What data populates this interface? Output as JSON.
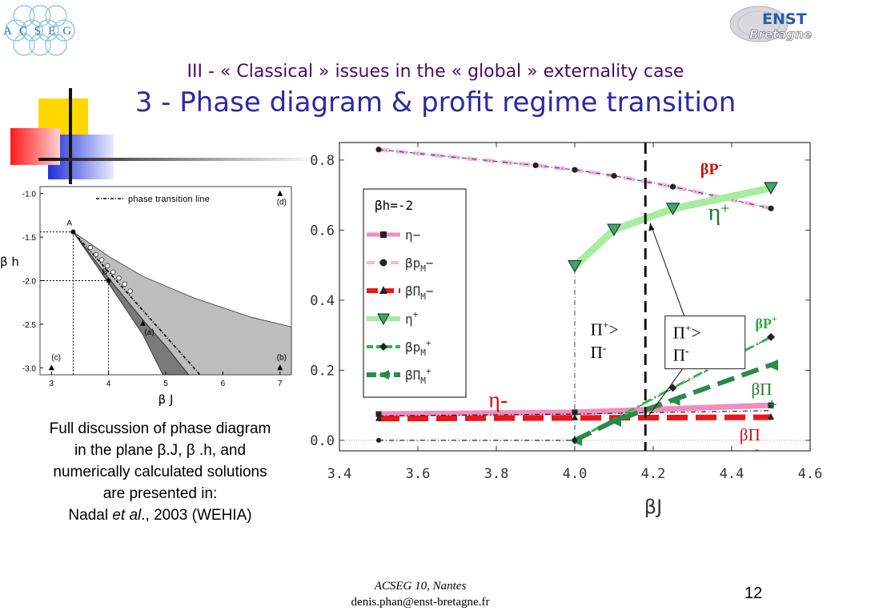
{
  "header": {
    "subtitle": "III - « Classical » issues in the « global » externality case",
    "title": "3 - Phase diagram & profit regime transition"
  },
  "logos": {
    "left_text": "ACSEG",
    "right_text_1": "ENST",
    "right_text_2": "Bretagne"
  },
  "description": {
    "line1": "Full discussion of phase diagram",
    "line2": "in the plane β.J, β .h, and",
    "line3": "numerically  calculated solutions",
    "line4": "are presented in:",
    "line5_author": "Nadal ",
    "line5_etal": "et al",
    "line5_rest": "., 2003 (WEHIA)"
  },
  "footer": {
    "conference": "ACSEG 10, Nantes",
    "email": "denis.phan@enst-bretagne.fr",
    "page": "12"
  },
  "chart_data": [
    {
      "type": "line",
      "xlabel": "β J",
      "ylabel": "β h",
      "xlim": [
        2.8,
        7.2
      ],
      "ylim": [
        -3.08,
        -0.92
      ],
      "x_ticks": [
        3,
        4,
        5,
        6,
        7
      ],
      "y_ticks": [
        -1.0,
        -1.5,
        -2.0,
        -2.5,
        -3.0
      ],
      "x_tick_labels": [
        "3",
        "4",
        "5",
        "6",
        "7"
      ],
      "y_tick_labels": [
        "-1.0",
        "-1.5",
        "-2.0",
        "-2.5",
        "-3.0"
      ],
      "legend": {
        "label": "phase transition line",
        "placement": "top"
      },
      "points": [
        {
          "label": "A",
          "x": 3.38,
          "y": -1.44
        },
        {
          "label": "B",
          "x": 4.0,
          "y": -2.0
        }
      ],
      "region_markers": [
        {
          "label": "(a)",
          "x": 4.6,
          "y": -2.49
        },
        {
          "label": "(b)",
          "x": 7.0,
          "y": -3.0
        },
        {
          "label": "(c)",
          "x": 3.0,
          "y": -3.0
        },
        {
          "label": "(d)",
          "x": 7.0,
          "y": -1.0
        }
      ],
      "boundaries": [
        {
          "name": "upper",
          "x": [
            3.38,
            4.0,
            4.6,
            5.5,
            6.5,
            7.2
          ],
          "y": [
            -1.44,
            -1.72,
            -1.95,
            -2.2,
            -2.42,
            -2.53
          ]
        },
        {
          "name": "middle",
          "x": [
            3.38,
            4.0,
            4.6,
            5.0,
            5.4
          ],
          "y": [
            -1.44,
            -1.97,
            -2.45,
            -2.75,
            -3.08
          ]
        },
        {
          "name": "lower",
          "x": [
            3.38,
            4.0,
            4.6,
            4.95
          ],
          "y": [
            -1.44,
            -2.03,
            -2.62,
            -3.08
          ]
        }
      ],
      "transition_line": {
        "x": [
          3.38,
          5.6
        ],
        "y": [
          -1.44,
          -3.08
        ]
      },
      "circles": {
        "x": [
          3.68,
          3.78,
          3.88,
          3.98,
          4.08,
          4.18,
          4.28,
          4.38
        ],
        "y": [
          -1.62,
          -1.7,
          -1.76,
          -1.83,
          -1.9,
          -1.97,
          -2.04,
          -2.12
        ]
      }
    },
    {
      "type": "line",
      "xlabel": "βJ",
      "ylabel": "",
      "xlim": [
        3.4,
        4.6
      ],
      "ylim": [
        -0.03,
        0.85
      ],
      "x_ticks": [
        3.4,
        3.6,
        3.8,
        4.0,
        4.2,
        4.4,
        4.6
      ],
      "y_ticks": [
        0.0,
        0.2,
        0.4,
        0.6,
        0.8
      ],
      "x_tick_labels": [
        "3.4",
        "3.6",
        "3.8",
        "4.0",
        "4.2",
        "4.4",
        "4.6"
      ],
      "y_tick_labels": [
        "0.0",
        "0.2",
        "0.4",
        "0.6",
        "0.8"
      ],
      "legend_title": "βh=-2",
      "critical_x": 4.18,
      "series": [
        {
          "name": "η−",
          "color": "#f08cc0",
          "x": [
            3.5,
            4.0,
            4.5
          ],
          "y": [
            0.075,
            0.08,
            0.1
          ]
        },
        {
          "name": "βp_M−",
          "color": "#f4b6e4",
          "x": [
            3.5,
            3.9,
            4.0,
            4.1,
            4.25,
            4.5
          ],
          "y": [
            0.83,
            0.785,
            0.772,
            0.755,
            0.724,
            0.662
          ]
        },
        {
          "name": "βΠ_M−",
          "color": "#e81818",
          "x": [
            3.5,
            4.0,
            4.5
          ],
          "y": [
            0.062,
            0.064,
            0.066
          ]
        },
        {
          "name": "η+",
          "color": "#a8eca0",
          "x": [
            4.0,
            4.1,
            4.25,
            4.5
          ],
          "y": [
            0.497,
            0.601,
            0.661,
            0.72
          ]
        },
        {
          "name": "βp_M+",
          "color": "#2db84a",
          "x": [
            4.0,
            4.25,
            4.5
          ],
          "y": [
            0.0,
            0.15,
            0.295
          ]
        },
        {
          "name": "βΠ_M+",
          "color": "#2a8a4a",
          "x": [
            4.0,
            4.1,
            4.25,
            4.5
          ],
          "y": [
            0.0,
            0.055,
            0.115,
            0.215
          ]
        }
      ],
      "annotations": {
        "bP_minus": "βP",
        "bP_minus_sup": "-",
        "eta_plus": "η",
        "eta_plus_sup": "+",
        "bP_plus": "βP",
        "bP_plus_sup": "+",
        "eta_minus": "η-",
        "bPi_plus": "βΠ",
        "bPi_plus_sub": "+",
        "bPi_minus": "βΠ",
        "bPi_minus_sub": "-",
        "region_left_1": "Π",
        "region_left_1_sup": "+",
        "region_left_1_tail": ">",
        "region_left_2": "Π",
        "region_left_2_sup": "-",
        "box_line1": "Π",
        "box_line1_sup": "+",
        "box_line1_tail": ">",
        "box_line2": "Π",
        "box_line2_sup": "-"
      },
      "legend_labels": [
        {
          "main": "η−",
          "sub": ""
        },
        {
          "main": "βp",
          "sub": "M",
          "tail": "−"
        },
        {
          "main": "βΠ",
          "sub": "M",
          "tail": "−"
        },
        {
          "main": "η",
          "sup": "+"
        },
        {
          "main": "βp",
          "sub": "M",
          "sup": "+"
        },
        {
          "main": "βΠ",
          "sub": "M",
          "sup": "+"
        }
      ]
    }
  ]
}
